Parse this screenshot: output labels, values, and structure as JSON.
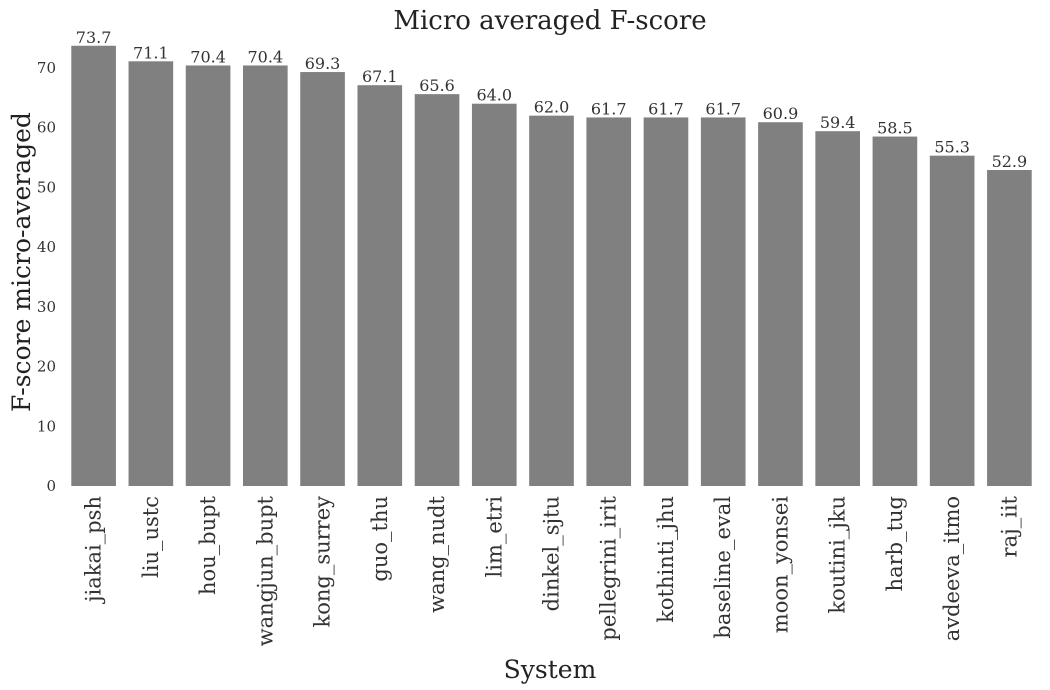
{
  "chart_data": {
    "type": "bar",
    "title": "Micro averaged F-score",
    "xlabel": "System",
    "ylabel": "F-score micro-averaged",
    "ylim": [
      0,
      75
    ],
    "yticks": [
      0,
      10,
      20,
      30,
      40,
      50,
      60,
      70
    ],
    "grid": false,
    "bar_color": "#808080",
    "categories": [
      "jiakai_psh",
      "liu_ustc",
      "hou_bupt",
      "wangjun_bupt",
      "kong_surrey",
      "guo_thu",
      "wang_nudt",
      "lim_etri",
      "dinkel_sjtu",
      "pellegrini_irit",
      "kothinti_jhu",
      "baseline_eval",
      "moon_yonsei",
      "koutini_jku",
      "harb_tug",
      "avdeeva_itmo",
      "raj_iit"
    ],
    "values": [
      73.7,
      71.1,
      70.4,
      70.4,
      69.3,
      67.1,
      65.6,
      64.0,
      62.0,
      61.7,
      61.7,
      61.7,
      60.9,
      59.4,
      58.5,
      55.3,
      52.9
    ],
    "value_labels": [
      "73.7",
      "71.1",
      "70.4",
      "70.4",
      "69.3",
      "67.1",
      "65.6",
      "64.0",
      "62.0",
      "61.7",
      "61.7",
      "61.7",
      "60.9",
      "59.4",
      "58.5",
      "55.3",
      "52.9"
    ]
  }
}
